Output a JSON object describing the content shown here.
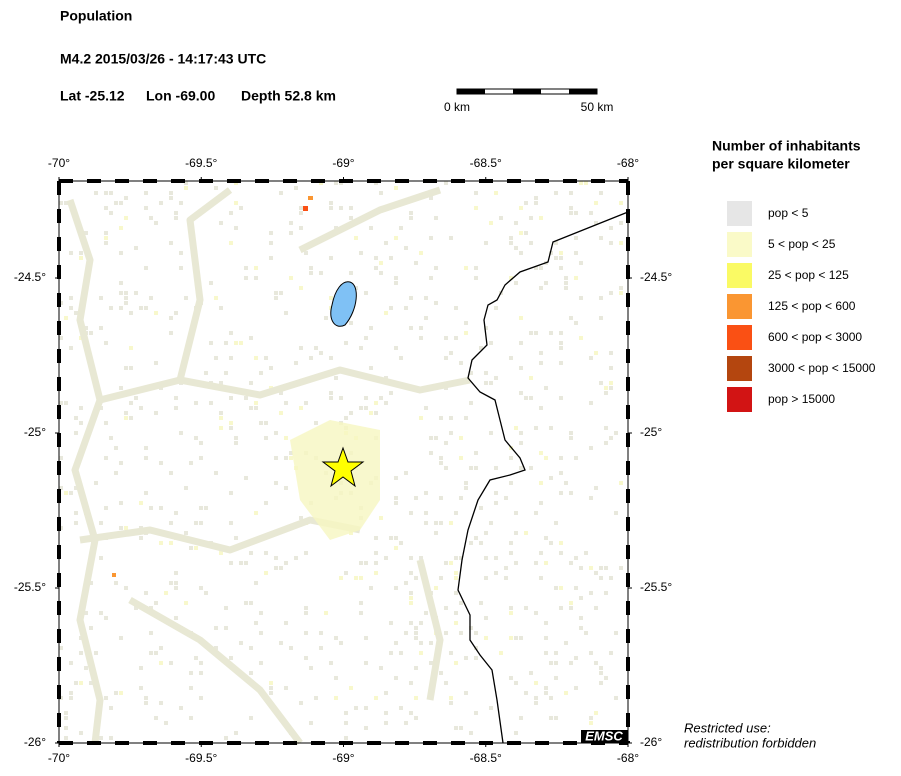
{
  "header": {
    "title": "Population",
    "event": "M4.2  2015/03/26 - 14:17:43 UTC",
    "lat": "Lat -25.12",
    "lon": "Lon -69.00",
    "depth": "Depth  52.8 km"
  },
  "scale_bar": {
    "start": "0 km",
    "end": "50 km"
  },
  "map": {
    "lon_ticks": [
      {
        "value": -70,
        "label": "-70°"
      },
      {
        "value": -69.5,
        "label": "-69.5°"
      },
      {
        "value": -69,
        "label": "-69°"
      },
      {
        "value": -68.5,
        "label": "-68.5°"
      },
      {
        "value": -68,
        "label": "-68°"
      }
    ],
    "lat_ticks": [
      {
        "value": -24.5,
        "label": "-24.5°"
      },
      {
        "value": -25,
        "label": "-25°"
      },
      {
        "value": -25.5,
        "label": "-25.5°"
      },
      {
        "value": -26,
        "label": "-26°"
      }
    ],
    "badge": "EMSC"
  },
  "legend": {
    "title_line1": "Number of inhabitants",
    "title_line2": "per square kilometer",
    "items": [
      {
        "label": "pop < 5",
        "color": "#e6e6e6"
      },
      {
        "label": "5 < pop < 25",
        "color": "#fafac8"
      },
      {
        "label": "25 < pop < 125",
        "color": "#fafa64"
      },
      {
        "label": "125 < pop < 600",
        "color": "#fa9632"
      },
      {
        "label": "600 < pop < 3000",
        "color": "#fa5014"
      },
      {
        "label": "3000 < pop < 15000",
        "color": "#b4460f"
      },
      {
        "label": "pop > 15000",
        "color": "#d21414"
      }
    ]
  },
  "note": {
    "line1": "Restricted use:",
    "line2": "redistribution forbidden"
  }
}
